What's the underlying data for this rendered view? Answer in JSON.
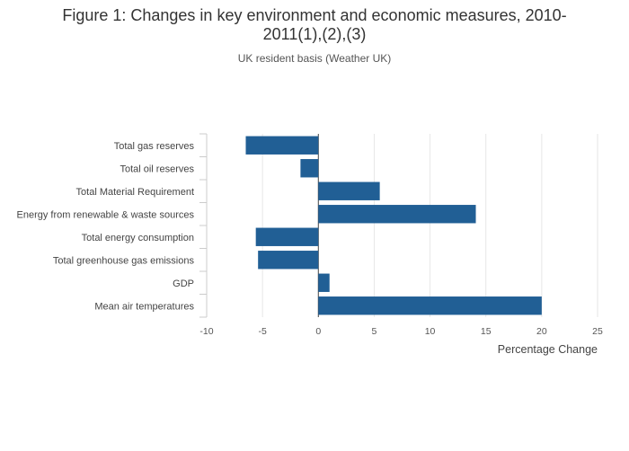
{
  "chart_data": {
    "type": "bar",
    "orientation": "horizontal",
    "title": "Figure 1: Changes in key environment and economic measures, 2010-2011(1),(2),(3)",
    "subtitle": "UK resident basis (Weather UK)",
    "xlabel": "Percentage Change",
    "ylabel": "",
    "xlim": [
      -10,
      25
    ],
    "xticks": [
      -10,
      -5,
      0,
      5,
      10,
      15,
      20,
      25
    ],
    "categories": [
      "Total gas reserves",
      "Total oil reserves",
      "Total Material Requirement",
      "Energy from renewable & waste sources",
      "Total energy consumption",
      "Total greenhouse gas emissions",
      "GDP",
      "Mean air temperatures"
    ],
    "values": [
      -6.5,
      -1.6,
      5.5,
      14.1,
      -5.6,
      -5.4,
      1.0,
      20.0
    ],
    "bar_color": "#215f95",
    "grid": true
  }
}
